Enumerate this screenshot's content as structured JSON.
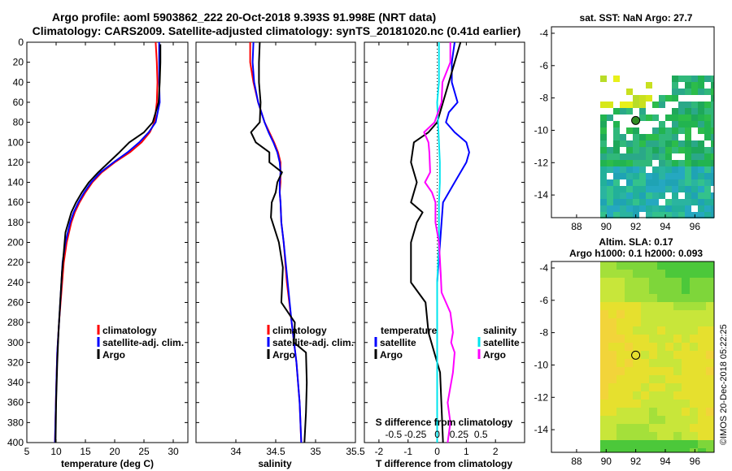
{
  "title_line1": "Argo profile: aoml 5903862_222 20-Oct-2018 9.393S 91.998E (NRT data)",
  "title_line2": "Climatology: CARS2009. Satellite-adjusted climatology: synTS_20181020.nc (0.41d earlier)",
  "colors": {
    "climatology": "#ff0000",
    "satellite": "#0000ff",
    "argo": "#000000",
    "sal_satellite": "#00e5ee",
    "sal_argo": "#ff00ff",
    "float_marker": "#2e8b22"
  },
  "chart_data": [
    {
      "type": "line",
      "name": "temperature",
      "xlabel": "temperature (deg C)",
      "xlim": [
        5,
        32.5
      ],
      "ylim": [
        0,
        400
      ],
      "xticks": [
        "5",
        "10",
        "15",
        "20",
        "25",
        "30"
      ],
      "xtick_values": [
        5,
        10,
        15,
        20,
        25,
        30
      ],
      "yticks": [
        "0",
        "20",
        "40",
        "60",
        "80",
        "100",
        "120",
        "140",
        "160",
        "180",
        "200",
        "220",
        "240",
        "260",
        "280",
        "300",
        "320",
        "340",
        "360",
        "380",
        "400"
      ],
      "ytick_values": [
        0,
        20,
        40,
        60,
        80,
        100,
        120,
        140,
        160,
        180,
        200,
        220,
        240,
        260,
        280,
        300,
        320,
        340,
        360,
        380,
        400
      ],
      "legend": [
        "climatology",
        "satellite-adj. clim.",
        "Argo"
      ],
      "series": [
        {
          "name": "climatology",
          "color_key": "climatology",
          "x": [
            27.0,
            27.2,
            27.3,
            27.2,
            26.8,
            26.0,
            24.6,
            22.6,
            20.0,
            17.8,
            16.2,
            15.0,
            14.0,
            13.2,
            12.6,
            11.8,
            11.3,
            10.9,
            10.5,
            10.2,
            10.0,
            9.8
          ],
          "y": [
            0,
            20,
            40,
            60,
            80,
            90,
            100,
            110,
            120,
            130,
            140,
            150,
            160,
            170,
            180,
            200,
            220,
            250,
            280,
            310,
            350,
            400
          ]
        },
        {
          "name": "satellite-adj. clim.",
          "color_key": "satellite",
          "x": [
            27.6,
            27.6,
            27.6,
            27.7,
            27.0,
            25.8,
            24.2,
            22.2,
            19.8,
            17.6,
            16.0,
            14.8,
            13.8,
            13.0,
            12.4,
            11.6,
            11.1,
            10.8,
            10.5,
            10.2,
            10.0,
            9.8
          ],
          "y": [
            0,
            20,
            40,
            60,
            80,
            90,
            100,
            110,
            120,
            130,
            140,
            150,
            160,
            170,
            180,
            200,
            220,
            250,
            280,
            310,
            350,
            400
          ]
        },
        {
          "name": "Argo",
          "color_key": "argo",
          "x": [
            27.8,
            27.8,
            27.7,
            27.5,
            26.5,
            25.0,
            22.5,
            20.8,
            19.0,
            17.2,
            15.6,
            14.4,
            13.4,
            12.6,
            11.6,
            11.3,
            11.0,
            10.7,
            10.4,
            10.2,
            10.0,
            9.9
          ],
          "y": [
            2,
            20,
            40,
            60,
            80,
            90,
            100,
            110,
            120,
            130,
            140,
            150,
            160,
            170,
            190,
            210,
            230,
            260,
            290,
            320,
            360,
            400
          ]
        }
      ]
    },
    {
      "type": "line",
      "name": "salinity",
      "xlabel": "salinity",
      "xlim": [
        33.5,
        35.5
      ],
      "ylim": [
        0,
        400
      ],
      "xticks": [
        "34",
        "34.5",
        "35",
        "35.5"
      ],
      "xtick_values": [
        34,
        34.5,
        35,
        35.5
      ],
      "legend": [
        "climatology",
        "satellite-adj. clim.",
        "Argo"
      ],
      "series": [
        {
          "name": "climatology",
          "color_key": "climatology",
          "x": [
            34.18,
            34.18,
            34.22,
            34.28,
            34.36,
            34.42,
            34.48,
            34.53,
            34.56,
            34.56,
            34.56,
            34.55,
            34.56,
            34.57,
            34.6,
            34.64,
            34.7,
            34.76,
            34.8,
            34.82
          ],
          "y": [
            0,
            20,
            40,
            60,
            80,
            90,
            100,
            110,
            120,
            130,
            140,
            150,
            160,
            180,
            200,
            240,
            280,
            320,
            360,
            400
          ]
        },
        {
          "name": "satellite-adj. clim.",
          "color_key": "satellite",
          "x": [
            34.22,
            34.21,
            34.23,
            34.28,
            34.36,
            34.41,
            34.47,
            34.52,
            34.55,
            34.56,
            34.55,
            34.55,
            34.56,
            34.57,
            34.6,
            34.65,
            34.7,
            34.76,
            34.8,
            34.82
          ],
          "y": [
            0,
            20,
            40,
            60,
            80,
            90,
            100,
            110,
            120,
            130,
            140,
            150,
            160,
            180,
            200,
            240,
            280,
            320,
            360,
            400
          ]
        },
        {
          "name": "Argo",
          "color_key": "argo",
          "x": [
            34.3,
            34.29,
            34.29,
            34.31,
            34.3,
            34.19,
            34.25,
            34.42,
            34.42,
            34.58,
            34.52,
            34.5,
            34.45,
            34.44,
            34.54,
            34.59,
            34.57,
            34.74,
            34.73,
            34.88,
            34.89,
            34.88,
            34.86
          ],
          "y": [
            0,
            20,
            40,
            60,
            80,
            90,
            100,
            110,
            120,
            130,
            140,
            150,
            160,
            175,
            200,
            225,
            260,
            280,
            300,
            310,
            340,
            370,
            400
          ]
        }
      ]
    },
    {
      "type": "line",
      "name": "differences",
      "xlabel": "T difference from climatology",
      "xlabel_top": "S difference from climatology",
      "xlim": [
        -2.5,
        3.0
      ],
      "ylim": [
        0,
        400
      ],
      "xticks": [
        "-2",
        "-1",
        "0",
        "1",
        "2"
      ],
      "xtick_values": [
        -2,
        -1,
        0,
        1,
        2
      ],
      "xticks_top": [
        "-0.5",
        "-0.25",
        "0",
        "0.25",
        "0.5"
      ],
      "xticks_top_values": [
        -0.5,
        -0.25,
        0,
        0.25,
        0.5
      ],
      "legend_temperature_title": "temperature",
      "legend_salinity_title": "salinity",
      "legend_temperature": [
        "satellite",
        "Argo"
      ],
      "legend_salinity": [
        "satellite",
        "Argo"
      ],
      "series": [
        {
          "name": "T satellite",
          "color_key": "satellite",
          "x": [
            0.6,
            0.5,
            0.5,
            0.7,
            0.4,
            0.3,
            0.6,
            1.0,
            1.1,
            1.0,
            0.6,
            0.2,
            0.1,
            0.0,
            0.0,
            0.0,
            0.0,
            0.0
          ],
          "y": [
            0,
            20,
            40,
            60,
            70,
            80,
            90,
            100,
            110,
            120,
            140,
            160,
            200,
            240,
            280,
            320,
            360,
            400
          ]
        },
        {
          "name": "T Argo",
          "color_key": "argo",
          "x": [
            0.8,
            0.6,
            0.4,
            0.2,
            0.0,
            -0.3,
            -0.8,
            -0.9,
            -0.7,
            -0.9,
            -0.5,
            -0.7,
            -0.9,
            -0.9,
            -0.4,
            -0.3,
            0.1,
            0.2
          ],
          "y": [
            0,
            20,
            40,
            60,
            80,
            90,
            100,
            120,
            140,
            160,
            170,
            180,
            200,
            240,
            260,
            290,
            330,
            400
          ]
        },
        {
          "name": "S satellite",
          "color_key": "sal_satellite",
          "x": [
            0.02,
            0.02,
            0.0,
            0.01,
            0.02,
            0.03,
            0.03,
            0.02,
            0.02,
            0.0,
            0.0,
            0.0,
            0.0
          ],
          "y": [
            0,
            40,
            60,
            80,
            100,
            120,
            140,
            160,
            200,
            240,
            280,
            340,
            400
          ]
        },
        {
          "name": "S Argo",
          "color_key": "sal_argo",
          "x": [
            0.15,
            0.15,
            0.06,
            0.05,
            -0.03,
            -0.15,
            -0.1,
            -0.09,
            -0.08,
            -0.14,
            -0.06,
            -0.02,
            -0.02,
            0.02,
            0.04,
            0.05,
            0.15,
            0.18,
            0.16,
            0.2,
            0.18,
            0.12,
            0.15,
            0.12
          ],
          "y": [
            0,
            20,
            40,
            60,
            80,
            90,
            100,
            110,
            130,
            140,
            150,
            160,
            180,
            200,
            230,
            250,
            270,
            290,
            300,
            310,
            330,
            360,
            380,
            400
          ]
        }
      ]
    },
    {
      "type": "heatmap",
      "name": "sst_map",
      "title": "sat. SST: NaN Argo: 27.7",
      "xlim": [
        86.3,
        97.3
      ],
      "ylim": [
        -15.4,
        -3.6
      ],
      "xticks": [
        "88",
        "90",
        "92",
        "94",
        "96"
      ],
      "xtick_values": [
        88,
        90,
        92,
        94,
        96
      ],
      "yticks": [
        "-4",
        "-6",
        "-8",
        "-10",
        "-12",
        "-14"
      ],
      "ytick_values": [
        -4,
        -6,
        -8,
        -10,
        -12,
        -14
      ],
      "float": {
        "lon": 91.998,
        "lat": -9.393
      }
    },
    {
      "type": "heatmap",
      "name": "sla_map",
      "title": "Altim. SLA: 0.17",
      "subtitle": "Argo h1000: 0.1 h2000: 0.093",
      "xlim": [
        86.3,
        97.3
      ],
      "ylim": [
        -15.4,
        -3.6
      ],
      "xticks": [
        "88",
        "90",
        "92",
        "94",
        "96"
      ],
      "xtick_values": [
        88,
        90,
        92,
        94,
        96
      ],
      "yticks": [
        "-4",
        "-6",
        "-8",
        "-10",
        "-12",
        "-14"
      ],
      "ytick_values": [
        -4,
        -6,
        -8,
        -10,
        -12,
        -14
      ],
      "float": {
        "lon": 91.998,
        "lat": -9.393
      }
    }
  ],
  "stamp": "©IMOS 20-Dec-2018 05:22:25"
}
